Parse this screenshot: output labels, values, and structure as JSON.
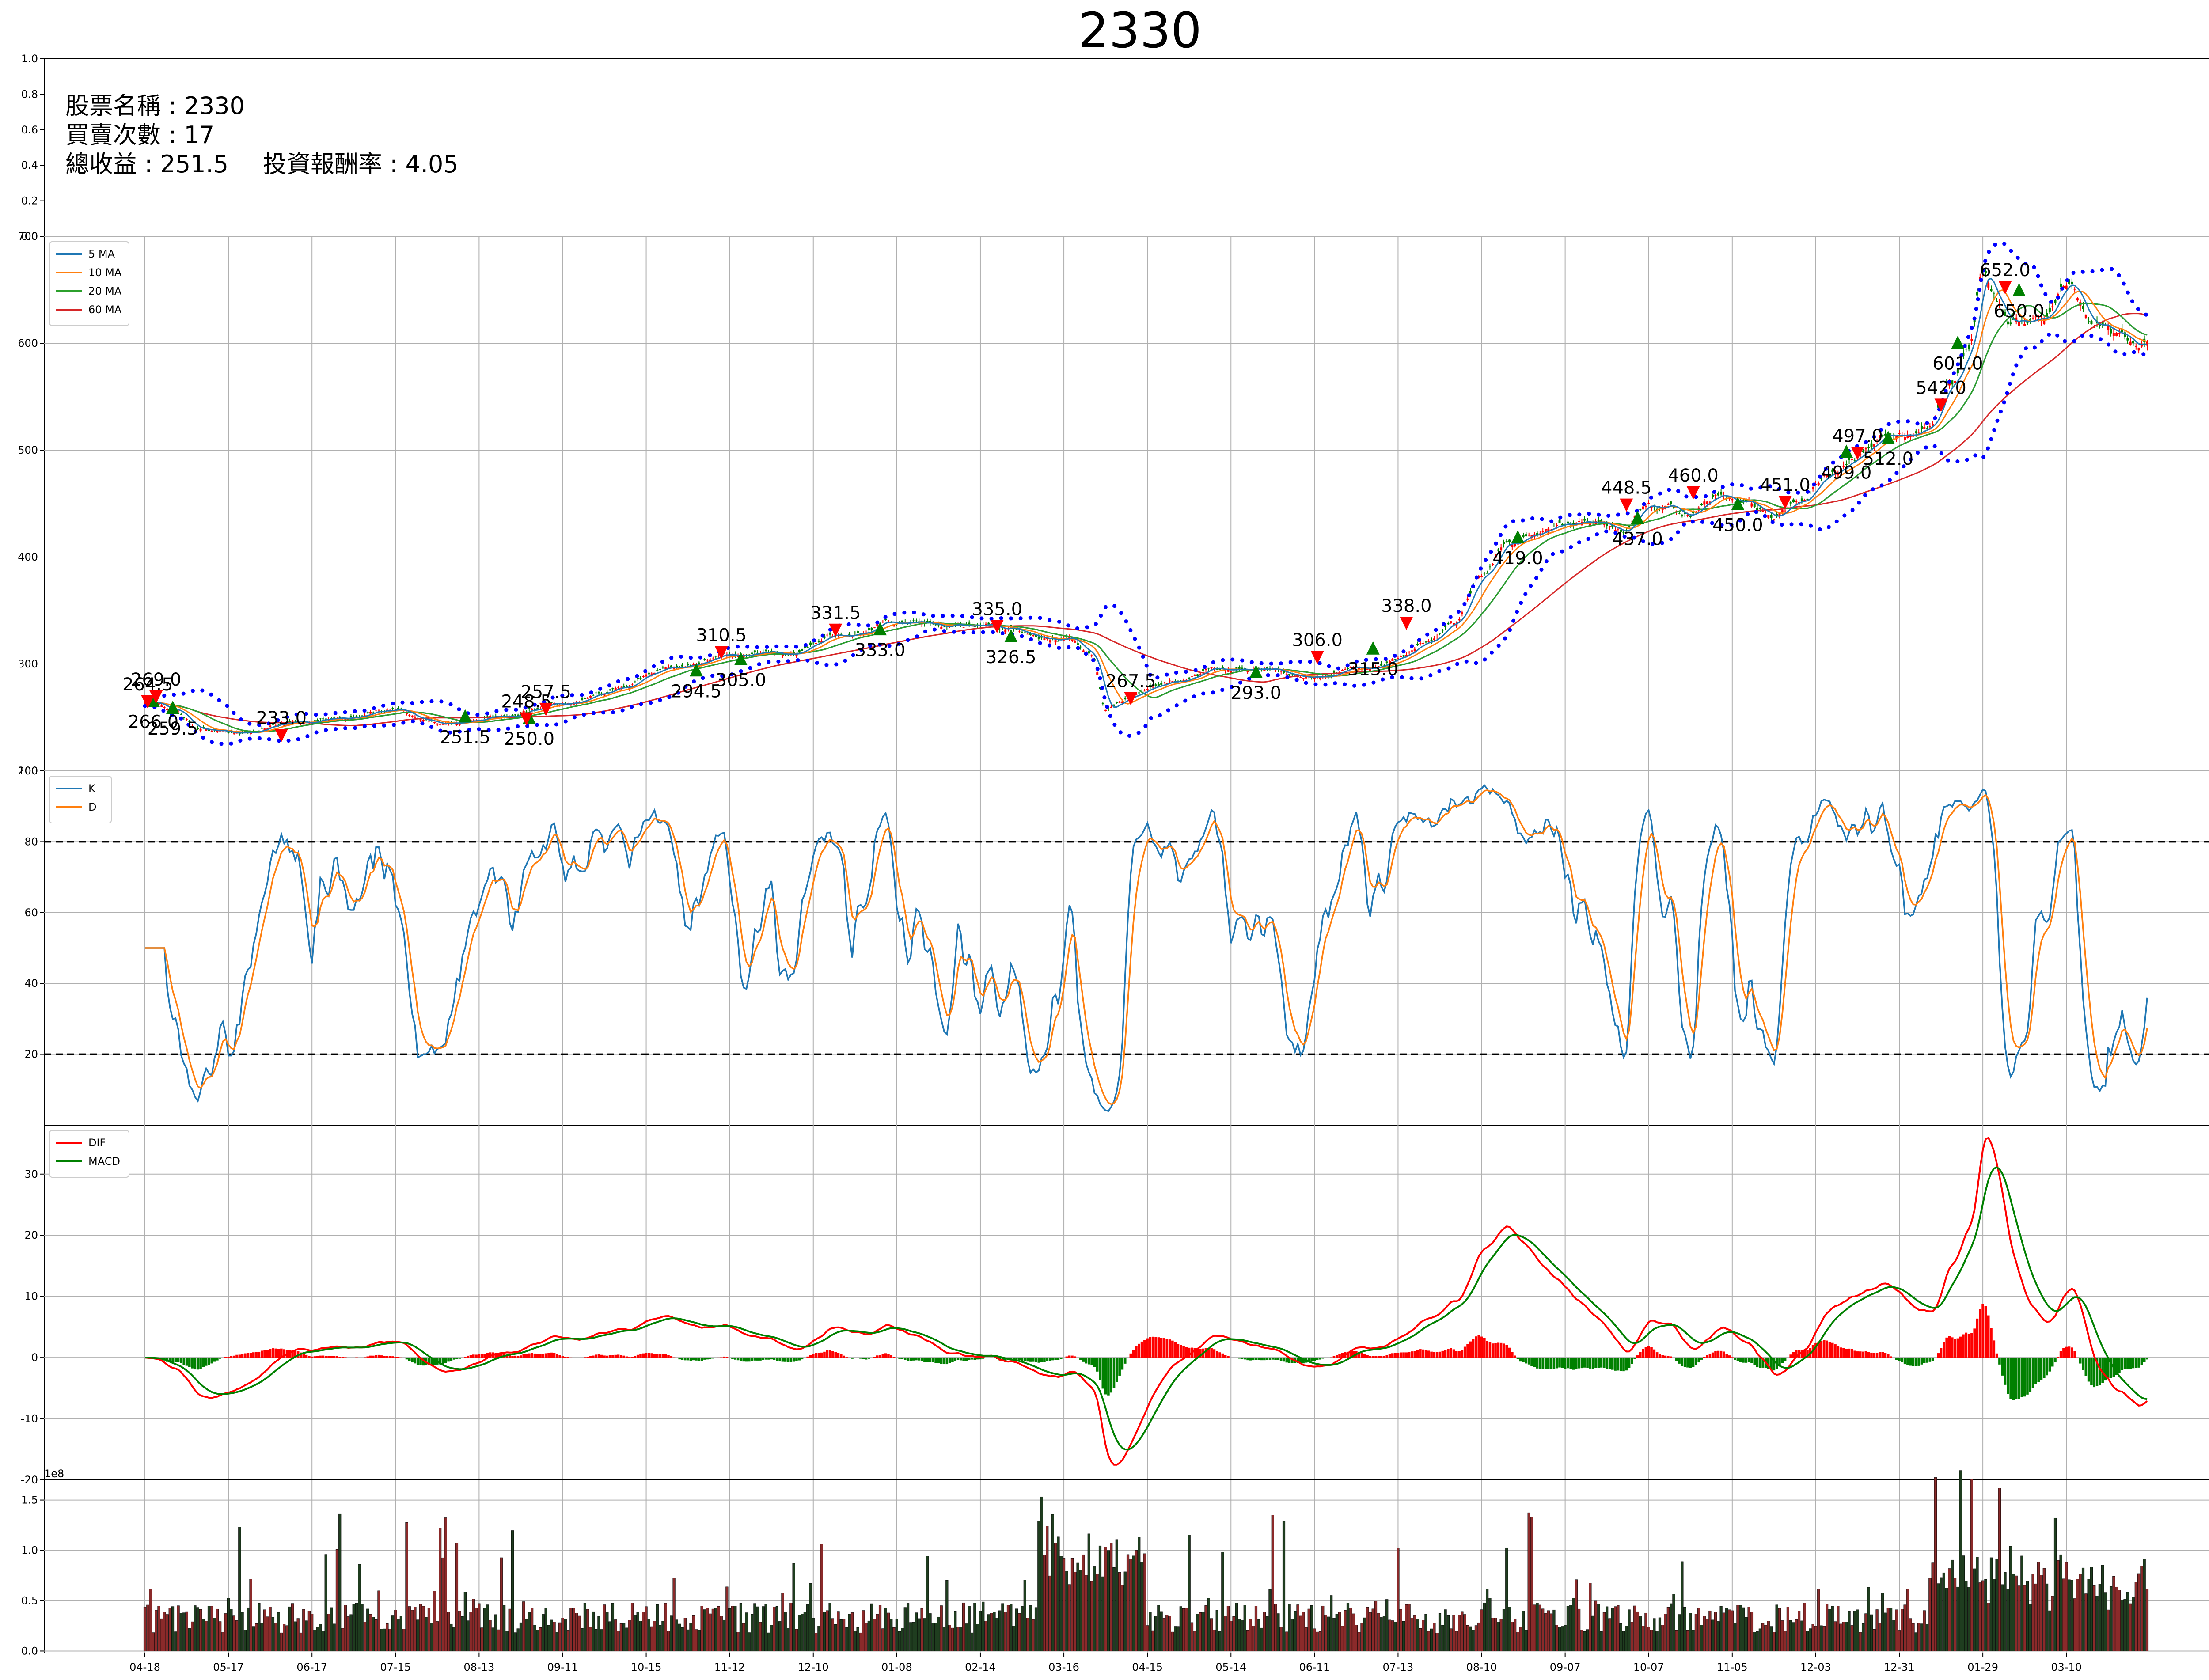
{
  "title": "2330",
  "info": {
    "stock_label": "股票名稱 : 2330",
    "trades_label": "買賣次數 : 17",
    "income_label": "總收益 : 251.5",
    "roi_label": "投資報酬率 : 4.05",
    "y_ticks": [
      "0.0",
      "0.2",
      "0.4",
      "0.6",
      "0.8",
      "1.0"
    ]
  },
  "colors": {
    "ma5": "#1f77b4",
    "ma10": "#ff7f0e",
    "ma20": "#2ca02c",
    "ma60": "#d62728",
    "mid": "#00209f",
    "band": "#0000ff",
    "buy": "#008000",
    "sell": "#ff0000",
    "k": "#1f77b4",
    "d": "#ff7f0e",
    "dif": "#ff0000",
    "macd": "#008000"
  },
  "chart_data": [
    {
      "type": "line",
      "panel": "price",
      "legend": [
        "5 MA",
        "10 MA",
        "20 MA",
        "60 MA"
      ],
      "legend_position": "top-left",
      "grid": true,
      "ylim": [
        200,
        700
      ],
      "y_ticks": [
        "200",
        "300",
        "400",
        "500",
        "600",
        "700"
      ],
      "x_tick_labels": [
        "04-18",
        "05-17",
        "06-17",
        "07-15",
        "08-13",
        "09-11",
        "10-15",
        "11-12",
        "12-10",
        "01-08",
        "02-14",
        "03-16",
        "04-15",
        "05-14",
        "06-11",
        "07-13",
        "08-10",
        "09-07",
        "10-07",
        "11-05",
        "12-03",
        "12-31",
        "01-29",
        "03-10"
      ],
      "price_anchors": [
        [
          0,
          265
        ],
        [
          10,
          258
        ],
        [
          20,
          240
        ],
        [
          35,
          236
        ],
        [
          50,
          244
        ],
        [
          70,
          248
        ],
        [
          90,
          258
        ],
        [
          105,
          244
        ],
        [
          125,
          250
        ],
        [
          150,
          262
        ],
        [
          170,
          276
        ],
        [
          190,
          298
        ],
        [
          210,
          310
        ],
        [
          230,
          308
        ],
        [
          250,
          328
        ],
        [
          270,
          340
        ],
        [
          290,
          338
        ],
        [
          310,
          332
        ],
        [
          330,
          324
        ],
        [
          340,
          310
        ],
        [
          345,
          258
        ],
        [
          355,
          270
        ],
        [
          370,
          285
        ],
        [
          385,
          294
        ],
        [
          400,
          296
        ],
        [
          420,
          290
        ],
        [
          440,
          296
        ],
        [
          450,
          308
        ],
        [
          460,
          322
        ],
        [
          470,
          338
        ],
        [
          480,
          382
        ],
        [
          490,
          415
        ],
        [
          500,
          424
        ],
        [
          510,
          432
        ],
        [
          520,
          432
        ],
        [
          530,
          426
        ],
        [
          540,
          450
        ],
        [
          555,
          440
        ],
        [
          565,
          458
        ],
        [
          575,
          448
        ],
        [
          585,
          440
        ],
        [
          595,
          452
        ],
        [
          605,
          478
        ],
        [
          615,
          494
        ],
        [
          625,
          512
        ],
        [
          635,
          512
        ],
        [
          640,
          520
        ],
        [
          648,
          560
        ],
        [
          655,
          590
        ],
        [
          660,
          665
        ],
        [
          665,
          640
        ],
        [
          670,
          620
        ],
        [
          680,
          620
        ],
        [
          690,
          655
        ],
        [
          700,
          620
        ],
        [
          710,
          600
        ],
        [
          720,
          600
        ]
      ],
      "buy_points": [
        [
          3,
          266.0
        ],
        [
          10,
          259.5
        ],
        [
          115,
          251.5
        ],
        [
          138,
          250.0
        ],
        [
          198,
          294.5
        ],
        [
          214,
          305.0
        ],
        [
          264,
          333.0
        ],
        [
          311,
          326.5
        ],
        [
          399,
          293.0
        ],
        [
          441,
          315.0
        ],
        [
          493,
          419.0
        ],
        [
          536,
          437.0
        ],
        [
          572,
          450.0
        ],
        [
          611,
          499.0
        ],
        [
          626,
          512.0
        ],
        [
          651,
          601.0
        ],
        [
          673,
          650.0
        ]
      ],
      "sell_points": [
        [
          1,
          264.5
        ],
        [
          4,
          269.0
        ],
        [
          49,
          233.0
        ],
        [
          137,
          248.5
        ],
        [
          144,
          257.5
        ],
        [
          207,
          310.5
        ],
        [
          248,
          331.5
        ],
        [
          306,
          335.0
        ],
        [
          354,
          267.5
        ],
        [
          421,
          306.0
        ],
        [
          453,
          338.0
        ],
        [
          532,
          448.5
        ],
        [
          556,
          460.0
        ],
        [
          589,
          451.0
        ],
        [
          615,
          497.0
        ],
        [
          645,
          542.0
        ],
        [
          668,
          652.0
        ]
      ],
      "buy_labels": [
        "266.0",
        "259.5",
        "251.5",
        "250.0",
        "294.5",
        "305.0",
        "333.0",
        "326.5",
        "293.0",
        "315.0",
        "419.0",
        "437.0",
        "450.0",
        "499.0",
        "512.0",
        "601.0",
        "650.0"
      ],
      "sell_labels": [
        "264.5",
        "269.0",
        "233.0",
        "248.5",
        "257.5",
        "310.5",
        "331.5",
        "335.0",
        "267.5",
        "306.0",
        "338.0",
        "448.5",
        "460.0",
        "451.0",
        "497.0",
        "542.0",
        "652.0"
      ]
    },
    {
      "type": "line",
      "panel": "kd",
      "legend": [
        "K",
        "D"
      ],
      "legend_position": "top-left",
      "grid": true,
      "ylim": [
        0,
        100
      ],
      "y_ticks": [
        "20",
        "40",
        "60",
        "80",
        "100"
      ],
      "reference_lines": [
        20,
        80
      ]
    },
    {
      "type": "bar",
      "panel": "macd",
      "legend": [
        "DIF",
        "MACD"
      ],
      "legend_position": "top-left",
      "grid": true,
      "ylim": [
        -20,
        38
      ],
      "y_ticks": [
        "-20",
        "-10",
        "0",
        "10",
        "20",
        "30"
      ]
    },
    {
      "type": "bar",
      "panel": "volume",
      "offset_label": "1e8",
      "grid": true,
      "ylim": [
        -0.02,
        1.7
      ],
      "y_ticks": [
        "0.0",
        "0.5",
        "1.0",
        "1.5"
      ]
    }
  ]
}
